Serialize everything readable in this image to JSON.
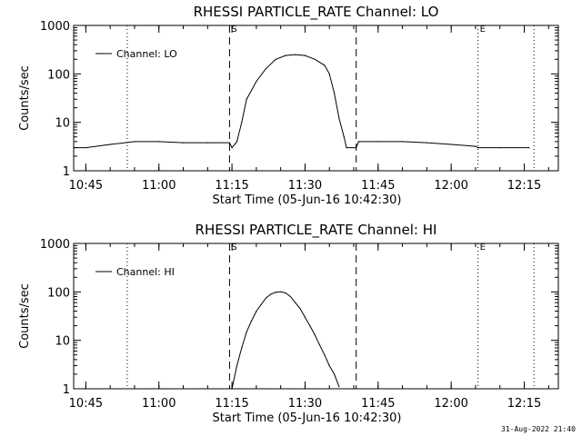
{
  "footer": {
    "timestamp": "31-Aug-2022 21:40"
  },
  "chart_data": [
    {
      "type": "line",
      "title": "RHESSI PARTICLE_RATE Channel: LO",
      "xlabel": "Start Time (05-Jun-16 10:42:30)",
      "ylabel": "Counts/sec",
      "yscale": "log",
      "ylim": [
        1,
        1000
      ],
      "y_ticks": [
        "1",
        "10",
        "100",
        "1000"
      ],
      "xlim": [
        "10:42:30",
        "12:22:00"
      ],
      "x_ticks": [
        "10:45",
        "11:00",
        "11:15",
        "11:30",
        "11:45",
        "12:00",
        "12:15"
      ],
      "legend": {
        "position": "top-left",
        "label": "Channel: LO"
      },
      "markers": [
        {
          "label": "",
          "time": "10:42:30",
          "style": "dotted"
        },
        {
          "label": "",
          "time": "10:53:30",
          "style": "dotted"
        },
        {
          "label": "S",
          "time": "11:14:30",
          "style": "dashed"
        },
        {
          "label": "",
          "time": "11:40:30",
          "style": "dashed"
        },
        {
          "label": "E",
          "time": "12:05:30",
          "style": "dotted"
        },
        {
          "label": "",
          "time": "12:17:00",
          "style": "dotted"
        }
      ],
      "series": [
        {
          "name": "Channel: LO",
          "points": [
            [
              "10:42:30",
              3
            ],
            [
              "10:45",
              3
            ],
            [
              "10:50",
              3.5
            ],
            [
              "10:55",
              4
            ],
            [
              "11:00",
              4
            ],
            [
              "11:05",
              3.8
            ],
            [
              "11:10",
              3.8
            ],
            [
              "11:14:30",
              3.8
            ],
            [
              "11:15",
              3
            ],
            [
              "11:16",
              4
            ],
            [
              "11:17",
              10
            ],
            [
              "11:18",
              30
            ],
            [
              "11:20",
              70
            ],
            [
              "11:22",
              130
            ],
            [
              "11:24",
              200
            ],
            [
              "11:26",
              240
            ],
            [
              "11:28",
              250
            ],
            [
              "11:30",
              240
            ],
            [
              "11:32",
              200
            ],
            [
              "11:34",
              150
            ],
            [
              "11:35",
              100
            ],
            [
              "11:36",
              40
            ],
            [
              "11:37",
              12
            ],
            [
              "11:38",
              5
            ],
            [
              "11:38:30",
              3
            ],
            [
              "11:40:30",
              3
            ],
            [
              "11:41",
              4
            ],
            [
              "11:45",
              4
            ],
            [
              "11:50",
              4
            ],
            [
              "11:55",
              3.8
            ],
            [
              "12:00",
              3.5
            ],
            [
              "12:05",
              3.2
            ],
            [
              "12:05:30",
              3
            ],
            [
              "12:10",
              3
            ],
            [
              "12:16",
              3
            ]
          ]
        }
      ]
    },
    {
      "type": "line",
      "title": "RHESSI PARTICLE_RATE Channel: HI",
      "xlabel": "Start Time (05-Jun-16 10:42:30)",
      "ylabel": "Counts/sec",
      "yscale": "log",
      "ylim": [
        1,
        1000
      ],
      "y_ticks": [
        "1",
        "10",
        "100",
        "1000"
      ],
      "xlim": [
        "10:42:30",
        "12:22:00"
      ],
      "x_ticks": [
        "10:45",
        "11:00",
        "11:15",
        "11:30",
        "11:45",
        "12:00",
        "12:15"
      ],
      "legend": {
        "position": "top-left",
        "label": "Channel: HI"
      },
      "markers": [
        {
          "label": "",
          "time": "10:42:30",
          "style": "dotted"
        },
        {
          "label": "",
          "time": "10:53:30",
          "style": "dotted"
        },
        {
          "label": "S",
          "time": "11:14:30",
          "style": "dashed"
        },
        {
          "label": "",
          "time": "11:40:30",
          "style": "dashed"
        },
        {
          "label": "E",
          "time": "12:05:30",
          "style": "dotted"
        },
        {
          "label": "",
          "time": "12:17:00",
          "style": "dotted"
        }
      ],
      "series": [
        {
          "name": "Channel: HI",
          "points": [
            [
              "11:15",
              1
            ],
            [
              "11:16",
              3
            ],
            [
              "11:17",
              7
            ],
            [
              "11:18",
              15
            ],
            [
              "11:19",
              25
            ],
            [
              "11:20",
              40
            ],
            [
              "11:21",
              55
            ],
            [
              "11:22",
              75
            ],
            [
              "11:23",
              90
            ],
            [
              "11:24",
              98
            ],
            [
              "11:25",
              100
            ],
            [
              "11:26",
              95
            ],
            [
              "11:27",
              80
            ],
            [
              "11:28",
              60
            ],
            [
              "11:29",
              45
            ],
            [
              "11:30",
              30
            ],
            [
              "11:31",
              20
            ],
            [
              "11:32",
              13
            ],
            [
              "11:33",
              8
            ],
            [
              "11:34",
              5
            ],
            [
              "11:35",
              3
            ],
            [
              "11:36",
              2
            ],
            [
              "11:37",
              1.1
            ]
          ]
        }
      ]
    }
  ]
}
